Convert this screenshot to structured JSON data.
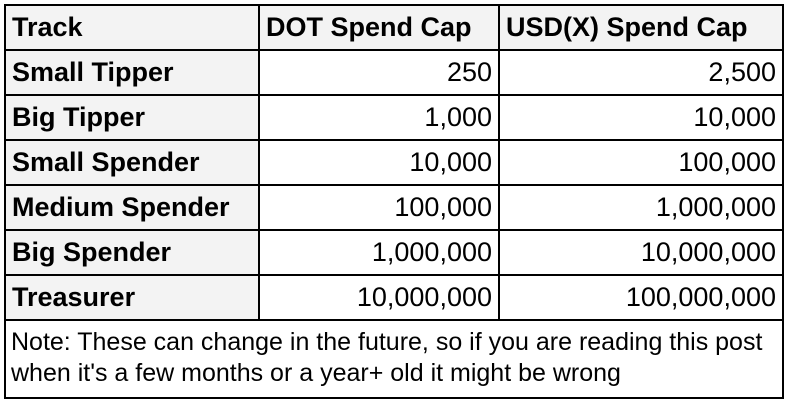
{
  "table": {
    "headers": [
      "Track",
      "DOT Spend Cap",
      "USD(X) Spend Cap"
    ],
    "rows": [
      {
        "track": "Small Tipper",
        "dot": "250",
        "usd": "2,500"
      },
      {
        "track": "Big Tipper",
        "dot": "1,000",
        "usd": "10,000"
      },
      {
        "track": "Small Spender",
        "dot": "10,000",
        "usd": "100,000"
      },
      {
        "track": "Medium Spender",
        "dot": "100,000",
        "usd": "1,000,000"
      },
      {
        "track": "Big Spender",
        "dot": "1,000,000",
        "usd": "10,000,000"
      },
      {
        "track": "Treasurer",
        "dot": "10,000,000",
        "usd": "100,000,000"
      }
    ]
  },
  "note": "Note: These can change in the future, so if you are reading this post when it's a few months or a year+ old it might be wrong"
}
